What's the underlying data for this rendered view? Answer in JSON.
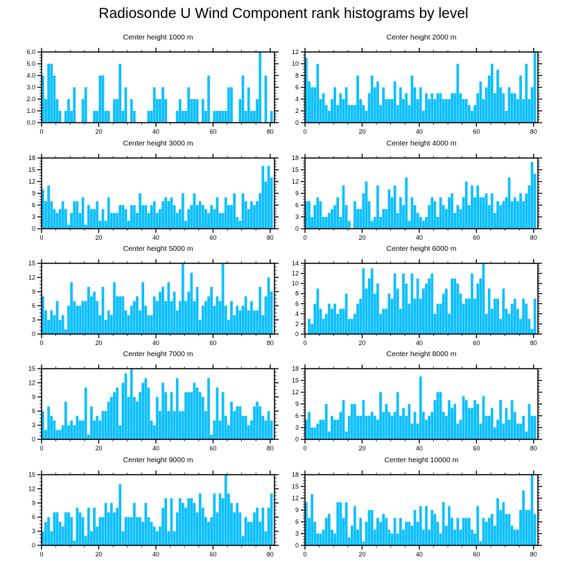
{
  "chart_data": {
    "type": "bar",
    "title": "Radiosonde U Wind Component rank histograms by level",
    "bar_color": "#0cbfff",
    "xlim": [
      0,
      81.5
    ],
    "xticks": [
      0,
      20,
      40,
      60,
      80
    ],
    "panels": [
      {
        "title": "Center height 1000 m",
        "ylim": [
          0,
          6
        ],
        "yticks": [
          0,
          1,
          2,
          3,
          4,
          5,
          6
        ],
        "ytick_decimals": 1,
        "values": [
          4,
          2,
          5,
          5,
          4,
          2,
          1,
          0,
          1,
          2,
          1,
          3,
          0,
          0,
          2,
          3,
          0,
          0,
          1,
          1,
          4,
          4,
          1,
          1,
          0,
          2,
          2,
          5,
          1,
          3,
          0,
          2,
          1,
          0,
          0,
          0,
          0,
          1,
          1,
          3,
          2,
          2,
          3,
          2,
          0,
          0,
          0,
          1,
          2,
          1,
          1,
          3,
          2,
          2,
          2,
          0,
          2,
          1,
          4,
          0,
          1,
          1,
          1,
          1,
          1,
          3,
          3,
          0,
          0,
          2,
          4,
          1,
          3,
          1,
          1,
          2,
          6,
          0,
          4,
          0,
          1
        ]
      },
      {
        "title": "Center height 2000 m",
        "ylim": [
          0,
          12
        ],
        "yticks": [
          0,
          2,
          4,
          6,
          8,
          10,
          12
        ],
        "ytick_decimals": 0,
        "values": [
          11,
          7,
          6,
          6,
          10,
          4,
          5,
          3,
          2,
          4,
          6,
          3,
          5,
          4,
          6,
          3,
          3,
          3,
          8,
          4,
          3,
          2,
          5,
          8,
          6,
          7,
          3,
          6,
          4,
          4,
          4,
          7,
          3,
          6,
          4,
          5,
          3,
          8,
          6,
          4,
          6,
          2,
          5,
          4,
          5,
          4,
          5,
          5,
          4,
          4,
          4,
          5,
          5,
          10,
          5,
          4,
          4,
          3,
          2,
          3,
          5,
          7,
          4,
          6,
          8,
          10,
          5,
          9,
          6,
          5,
          2,
          6,
          5,
          5,
          4,
          8,
          4,
          10,
          4,
          6,
          12
        ]
      },
      {
        "title": "Center height 3000 m",
        "ylim": [
          0,
          18
        ],
        "yticks": [
          0,
          3,
          6,
          9,
          12,
          15,
          18
        ],
        "ytick_decimals": 0,
        "values": [
          10,
          7,
          11,
          7,
          5,
          4,
          5,
          7,
          5,
          1,
          4,
          7,
          7,
          4,
          8,
          1,
          6,
          5,
          5,
          7,
          2,
          5,
          2,
          8,
          4,
          4,
          4,
          6,
          6,
          5,
          2,
          6,
          6,
          4,
          9,
          6,
          6,
          4,
          6,
          7,
          4,
          5,
          7,
          8,
          7,
          8,
          6,
          4,
          5,
          9,
          2,
          5,
          6,
          9,
          6,
          7,
          6,
          5,
          4,
          6,
          5,
          8,
          4,
          4,
          8,
          6,
          6,
          9,
          3,
          2,
          9,
          7,
          5,
          7,
          6,
          7,
          9,
          16,
          12,
          16,
          13
        ]
      },
      {
        "title": "Center height 4000 m",
        "ylim": [
          0,
          18
        ],
        "yticks": [
          0,
          3,
          6,
          9,
          12,
          15,
          18
        ],
        "ytick_decimals": 0,
        "values": [
          7,
          7,
          3,
          6,
          8,
          7,
          3,
          3,
          4,
          5,
          6,
          8,
          3,
          11,
          6,
          2,
          0,
          7,
          5,
          5,
          9,
          12,
          7,
          2,
          3,
          11,
          3,
          5,
          5,
          10,
          8,
          11,
          4,
          8,
          6,
          13,
          2,
          8,
          6,
          4,
          3,
          2,
          3,
          6,
          8,
          7,
          3,
          8,
          6,
          5,
          8,
          9,
          4,
          6,
          5,
          8,
          12,
          6,
          11,
          8,
          11,
          8,
          8,
          9,
          6,
          9,
          4,
          7,
          6,
          7,
          8,
          13,
          7,
          8,
          7,
          9,
          7,
          9,
          11,
          17,
          14
        ]
      },
      {
        "title": "Center height 5000 m",
        "ylim": [
          0,
          15
        ],
        "yticks": [
          0,
          3,
          6,
          9,
          12,
          15
        ],
        "ytick_decimals": 0,
        "values": [
          8,
          5,
          3,
          5,
          4,
          7,
          3,
          4,
          1,
          6,
          11,
          7,
          6,
          6,
          7,
          7,
          10,
          8,
          9,
          7,
          4,
          10,
          3,
          5,
          4,
          11,
          8,
          8,
          8,
          5,
          4,
          6,
          7,
          8,
          5,
          11,
          6,
          4,
          4,
          8,
          7,
          9,
          10,
          7,
          11,
          7,
          9,
          5,
          7,
          15,
          7,
          9,
          13,
          7,
          10,
          3,
          6,
          7,
          8,
          10,
          6,
          8,
          7,
          15,
          6,
          3,
          7,
          4,
          6,
          5,
          6,
          8,
          5,
          7,
          5,
          5,
          10,
          4,
          8,
          12,
          9
        ]
      },
      {
        "title": "Center height 6000 m",
        "ylim": [
          0,
          14
        ],
        "yticks": [
          0,
          2,
          4,
          6,
          8,
          10,
          12,
          14
        ],
        "ytick_decimals": 0,
        "values": [
          0,
          3,
          2,
          6,
          9,
          5,
          3,
          4,
          6,
          5,
          6,
          4,
          5,
          5,
          8,
          3,
          3,
          4,
          6,
          7,
          13,
          9,
          11,
          13,
          8,
          10,
          4,
          5,
          5,
          8,
          7,
          12,
          9,
          5,
          12,
          10,
          6,
          12,
          7,
          11,
          7,
          9,
          10,
          11,
          12,
          4,
          6,
          6,
          8,
          9,
          4,
          11,
          11,
          10,
          8,
          6,
          7,
          7,
          12,
          7,
          10,
          11,
          14,
          4,
          9,
          5,
          7,
          7,
          3,
          9,
          5,
          4,
          6,
          7,
          5,
          3,
          7,
          6,
          3,
          1,
          7
        ]
      },
      {
        "title": "Center height 7000 m",
        "ylim": [
          0,
          15
        ],
        "yticks": [
          0,
          3,
          6,
          9,
          12,
          15
        ],
        "ytick_decimals": 0,
        "values": [
          6,
          2,
          7,
          5,
          4,
          2,
          2,
          3,
          8,
          3,
          4,
          3,
          5,
          4,
          4,
          11,
          1,
          7,
          4,
          5,
          4,
          6,
          6,
          8,
          9,
          10,
          11,
          3,
          12,
          14,
          9,
          15,
          9,
          8,
          10,
          12,
          13,
          11,
          4,
          3,
          9,
          6,
          12,
          10,
          6,
          10,
          6,
          13,
          6,
          6,
          10,
          10,
          10,
          12,
          11,
          10,
          9,
          6,
          13,
          1,
          4,
          11,
          4,
          10,
          5,
          3,
          8,
          6,
          7,
          7,
          5,
          5,
          3,
          4,
          7,
          8,
          7,
          5,
          4,
          6,
          4
        ]
      },
      {
        "title": "Center height 8000 m",
        "ylim": [
          0,
          18
        ],
        "yticks": [
          0,
          3,
          6,
          9,
          12,
          15,
          18
        ],
        "ytick_decimals": 0,
        "values": [
          5,
          7,
          3,
          3,
          4,
          5,
          5,
          9,
          2,
          6,
          5,
          5,
          7,
          10,
          2,
          6,
          9,
          9,
          6,
          6,
          10,
          6,
          6,
          7,
          6,
          5,
          12,
          7,
          9,
          7,
          6,
          7,
          12,
          6,
          8,
          6,
          9,
          4,
          7,
          4,
          16,
          7,
          5,
          6,
          7,
          10,
          12,
          12,
          7,
          6,
          10,
          8,
          9,
          4,
          5,
          11,
          10,
          8,
          8,
          10,
          9,
          4,
          11,
          6,
          6,
          8,
          3,
          5,
          10,
          4,
          8,
          5,
          10,
          7,
          4,
          4,
          6,
          2,
          9,
          6,
          6
        ]
      },
      {
        "title": "Center height 9000 m",
        "ylim": [
          0,
          15
        ],
        "yticks": [
          0,
          3,
          6,
          9,
          12,
          15
        ],
        "ytick_decimals": 0,
        "values": [
          3,
          5,
          6,
          3,
          7,
          7,
          5,
          4,
          7,
          7,
          6,
          1,
          8,
          7,
          6,
          2,
          8,
          3,
          8,
          4,
          6,
          6,
          9,
          7,
          9,
          7,
          8,
          13,
          3,
          6,
          6,
          6,
          9,
          6,
          6,
          5,
          9,
          6,
          5,
          4,
          3,
          4,
          8,
          10,
          3,
          10,
          3,
          7,
          10,
          9,
          8,
          10,
          10,
          9,
          7,
          11,
          8,
          6,
          5,
          6,
          11,
          7,
          11,
          10,
          15,
          11,
          9,
          7,
          9,
          7,
          2,
          6,
          5,
          5,
          7,
          8,
          5,
          8,
          3,
          8,
          11
        ]
      },
      {
        "title": "Center height 10000 m",
        "ylim": [
          0,
          18
        ],
        "yticks": [
          0,
          3,
          6,
          9,
          12,
          15,
          18
        ],
        "ytick_decimals": 0,
        "values": [
          11,
          7,
          13,
          6,
          3,
          3,
          4,
          7,
          8,
          4,
          3,
          11,
          11,
          7,
          11,
          2,
          5,
          10,
          4,
          7,
          1,
          6,
          9,
          9,
          4,
          7,
          6,
          8,
          7,
          4,
          3,
          7,
          3,
          7,
          4,
          6,
          6,
          5,
          9,
          6,
          10,
          4,
          10,
          4,
          9,
          8,
          6,
          3,
          11,
          5,
          10,
          7,
          4,
          7,
          4,
          7,
          7,
          7,
          4,
          3,
          10,
          1,
          7,
          6,
          7,
          8,
          5,
          12,
          9,
          11,
          8,
          8,
          5,
          4,
          4,
          9,
          14,
          9,
          9,
          18,
          8
        ]
      }
    ]
  }
}
